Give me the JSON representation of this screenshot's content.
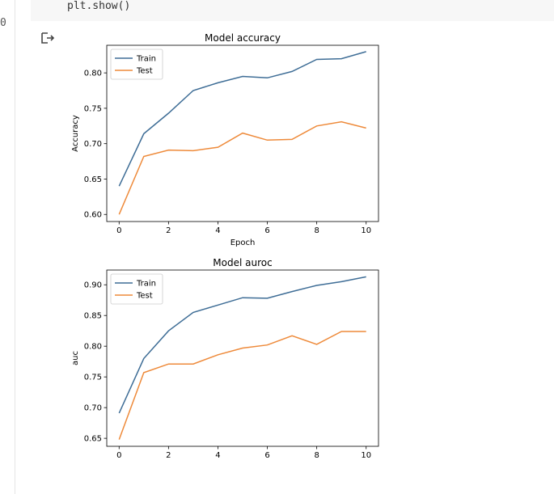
{
  "gutter": {
    "glyph": "0"
  },
  "code": {
    "line": "plt.show()"
  },
  "output": {
    "icon": "output-arrow-icon"
  },
  "colors": {
    "train": "#3e6d96",
    "test": "#ee8a3a",
    "axis": "#000000"
  },
  "chart_data": [
    {
      "type": "line",
      "title": "Model accuracy",
      "xlabel": "Epoch",
      "ylabel": "Accuracy",
      "x": [
        0,
        1,
        2,
        3,
        4,
        5,
        6,
        7,
        8,
        9,
        10
      ],
      "xlim": [
        -0.5,
        10.5
      ],
      "ylim": [
        0.59,
        0.839
      ],
      "xticks": [
        0,
        2,
        4,
        6,
        8,
        10
      ],
      "xtick_labels": [
        "0",
        "2",
        "4",
        "6",
        "8",
        "10"
      ],
      "yticks": [
        0.6,
        0.65,
        0.7,
        0.75,
        0.8
      ],
      "ytick_labels": [
        "0.60",
        "0.65",
        "0.70",
        "0.75",
        "0.80"
      ],
      "legend": "upper-left",
      "series": [
        {
          "name": "Train",
          "values": [
            0.64,
            0.714,
            0.743,
            0.775,
            0.786,
            0.795,
            0.793,
            0.802,
            0.819,
            0.82,
            0.83
          ]
        },
        {
          "name": "Test",
          "values": [
            0.6,
            0.682,
            0.691,
            0.69,
            0.695,
            0.715,
            0.705,
            0.706,
            0.725,
            0.731,
            0.722
          ]
        }
      ]
    },
    {
      "type": "line",
      "title": "Model auroc",
      "xlabel": "",
      "ylabel": "auc",
      "x": [
        0,
        1,
        2,
        3,
        4,
        5,
        6,
        7,
        8,
        9,
        10
      ],
      "xlim": [
        -0.5,
        10.5
      ],
      "ylim": [
        0.637,
        0.924
      ],
      "xticks": [
        0,
        2,
        4,
        6,
        8,
        10
      ],
      "xtick_labels": [
        "0",
        "2",
        "4",
        "6",
        "8",
        "10"
      ],
      "yticks": [
        0.65,
        0.7,
        0.75,
        0.8,
        0.85,
        0.9
      ],
      "ytick_labels": [
        "0.65",
        "0.70",
        "0.75",
        "0.80",
        "0.85",
        "0.90"
      ],
      "legend": "upper-left",
      "series": [
        {
          "name": "Train",
          "values": [
            0.691,
            0.78,
            0.825,
            0.855,
            0.867,
            0.879,
            0.878,
            0.889,
            0.899,
            0.905,
            0.913
          ]
        },
        {
          "name": "Test",
          "values": [
            0.648,
            0.757,
            0.771,
            0.771,
            0.786,
            0.797,
            0.802,
            0.817,
            0.803,
            0.824,
            0.824
          ]
        }
      ]
    }
  ]
}
